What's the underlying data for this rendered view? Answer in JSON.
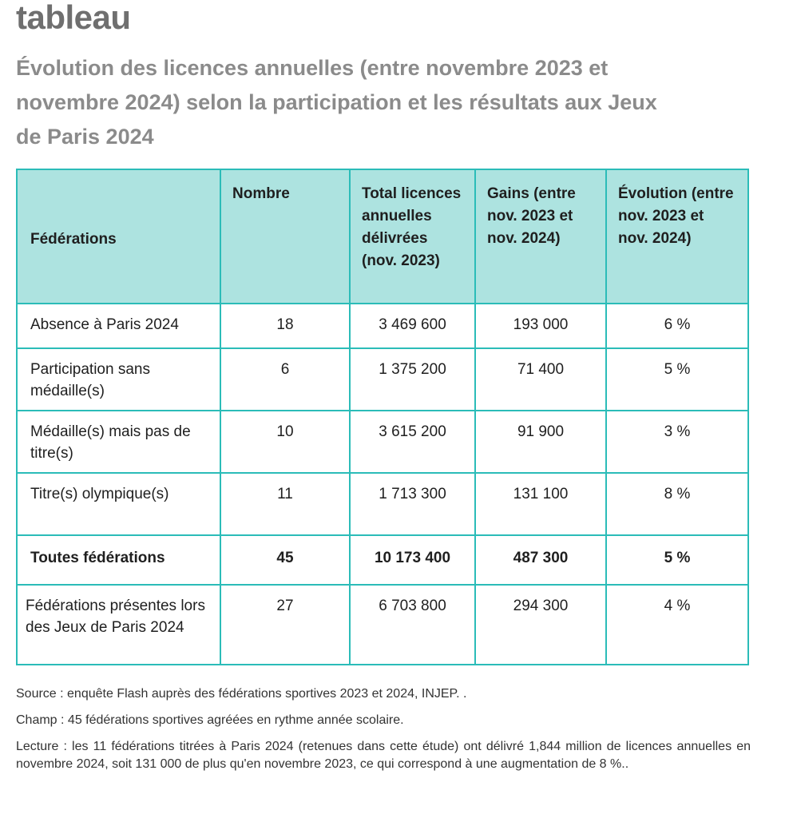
{
  "heading": "tableau",
  "subtitle": "Évolution des licences annuelles (entre novembre 2023 et novembre 2024) selon la participation et les résultats aux Jeux de Paris 2024",
  "table": {
    "headers": [
      "Fédérations",
      "Nombre",
      "Total licences annuelles délivrées (nov. 2023)",
      "Gains (entre nov. 2023 et nov. 2024)",
      "Évolution (entre nov. 2023 et nov. 2024)"
    ],
    "rows": [
      {
        "label": "Absence à Paris 2024",
        "nombre": "18",
        "total": "3 469 600",
        "gains": "193 000",
        "evolution": "6 %"
      },
      {
        "label": "Participation sans médaille(s)",
        "nombre": "6",
        "total": "1 375 200",
        "gains": "71 400",
        "evolution": "5 %"
      },
      {
        "label": "Médaille(s) mais pas de titre(s)",
        "nombre": "10",
        "total": "3 615 200",
        "gains": "91 900",
        "evolution": "3 %"
      },
      {
        "label": "Titre(s) olympique(s)",
        "nombre": "11",
        "total": "1 713 300",
        "gains": "131 100",
        "evolution": "8 %"
      },
      {
        "label": "Toutes fédérations",
        "nombre": "45",
        "total": "10 173 400",
        "gains": "487 300",
        "evolution": "5 %"
      },
      {
        "label": "Fédérations présentes lors des Jeux de Paris 2024",
        "nombre": "27",
        "total": "6 703 800",
        "gains": "294 300",
        "evolution": "4 %"
      }
    ]
  },
  "notes": {
    "source": "Source : enquête Flash auprès des fédérations sportives 2023 et 2024, INJEP. .",
    "champ": "Champ : 45 fédérations sportives agréées en rythme année scolaire.",
    "lecture": "Lecture : les 11 fédérations titrées à Paris 2024 (retenues dans cette étude) ont délivré 1,844 million de licences annuelles en novembre 2024, soit 131 000 de plus qu'en novembre 2023, ce qui correspond à une augmentation de 8 %.."
  }
}
